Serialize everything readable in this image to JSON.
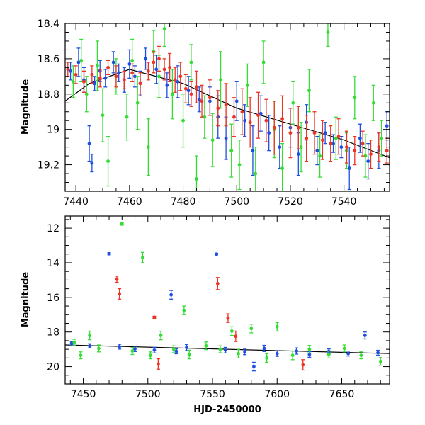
{
  "chart_data": [
    {
      "type": "scatter",
      "title": "",
      "xlabel": "",
      "ylabel": "Magnitude",
      "xlim": [
        7436,
        7557
      ],
      "ylim": [
        19.35,
        18.4
      ],
      "y_inverted": true,
      "x_ticks": [
        "7440",
        "7460",
        "7480",
        "7500",
        "7520",
        "7540"
      ],
      "y_ticks": [
        "18.4",
        "18.6",
        "18.8",
        "19",
        "19.2"
      ],
      "colors": {
        "blue": "#1f4fe0",
        "green": "#33dd33",
        "red": "#ee3322",
        "trend": "#000000"
      },
      "trend_line": {
        "x": [
          7436,
          7445,
          7460,
          7480,
          7500,
          7520,
          7540,
          7557
        ],
        "y": [
          18.84,
          18.74,
          18.66,
          18.74,
          18.88,
          18.97,
          19.06,
          19.16
        ]
      },
      "series": [
        {
          "color_key": "blue",
          "points": [
            [
              7438,
              18.67,
              0.05
            ],
            [
              7441,
              18.62,
              0.08
            ],
            [
              7443,
              18.72,
              0.07
            ],
            [
              7445,
              19.08,
              0.1
            ],
            [
              7446,
              19.19,
              0.05
            ],
            [
              7447,
              18.74,
              0.04
            ],
            [
              7449,
              18.67,
              0.06
            ],
            [
              7451,
              18.71,
              0.05
            ],
            [
              7454,
              18.62,
              0.06
            ],
            [
              7456,
              18.68,
              0.05
            ],
            [
              7458,
              18.72,
              0.07
            ],
            [
              7460,
              18.63,
              0.08
            ],
            [
              7462,
              18.7,
              0.06
            ],
            [
              7464,
              18.74,
              0.07
            ],
            [
              7466,
              18.6,
              0.06
            ],
            [
              7470,
              18.66,
              0.08
            ],
            [
              7474,
              18.75,
              0.07
            ],
            [
              7478,
              18.73,
              0.09
            ],
            [
              7482,
              18.78,
              0.08
            ],
            [
              7486,
              18.83,
              0.07
            ],
            [
              7490,
              18.84,
              0.08
            ],
            [
              7493,
              18.93,
              0.12
            ],
            [
              7496,
              19.05,
              0.12
            ],
            [
              7500,
              18.84,
              0.11
            ],
            [
              7503,
              18.95,
              0.09
            ],
            [
              7506,
              19.12,
              0.14
            ],
            [
              7509,
              18.91,
              0.1
            ],
            [
              7512,
              19.02,
              0.1
            ],
            [
              7516,
              19.1,
              0.12
            ],
            [
              7520,
              18.99,
              0.11
            ],
            [
              7523,
              19.14,
              0.12
            ],
            [
              7526,
              18.96,
              0.1
            ],
            [
              7530,
              19.12,
              0.08
            ],
            [
              7533,
              19.02,
              0.06
            ],
            [
              7536,
              19.08,
              0.05
            ],
            [
              7539,
              19.1,
              0.06
            ],
            [
              7542,
              19.22,
              0.12
            ],
            [
              7546,
              19.05,
              0.08
            ],
            [
              7549,
              19.18,
              0.1
            ],
            [
              7553,
              19.12,
              0.1
            ],
            [
              7556,
              18.98,
              0.08
            ]
          ]
        },
        {
          "color_key": "green",
          "points": [
            [
              7439,
              18.73,
              0.09
            ],
            [
              7442,
              18.61,
              0.12
            ],
            [
              7444,
              18.8,
              0.1
            ],
            [
              7448,
              18.64,
              0.14
            ],
            [
              7450,
              18.92,
              0.15
            ],
            [
              7452,
              19.18,
              0.14
            ],
            [
              7455,
              18.7,
              0.1
            ],
            [
              7459,
              18.93,
              0.13
            ],
            [
              7461,
              18.61,
              0.12
            ],
            [
              7463,
              18.85,
              0.15
            ],
            [
              7467,
              19.1,
              0.16
            ],
            [
              7469,
              18.56,
              0.12
            ],
            [
              7471,
              18.7,
              0.12
            ],
            [
              7473,
              18.43,
              0.1
            ],
            [
              7476,
              18.8,
              0.14
            ],
            [
              7480,
              18.95,
              0.15
            ],
            [
              7483,
              18.62,
              0.1
            ],
            [
              7485,
              19.28,
              0.13
            ],
            [
              7488,
              18.93,
              0.12
            ],
            [
              7491,
              19.06,
              0.15
            ],
            [
              7494,
              18.72,
              0.16
            ],
            [
              7498,
              19.12,
              0.15
            ],
            [
              7501,
              19.2,
              0.14
            ],
            [
              7504,
              18.75,
              0.12
            ],
            [
              7507,
              19.25,
              0.15
            ],
            [
              7510,
              18.62,
              0.12
            ],
            [
              7514,
              19.0,
              0.16
            ],
            [
              7517,
              19.22,
              0.14
            ],
            [
              7521,
              18.85,
              0.12
            ],
            [
              7524,
              19.1,
              0.14
            ],
            [
              7527,
              18.78,
              0.12
            ],
            [
              7531,
              19.15,
              0.12
            ],
            [
              7534,
              18.45,
              0.08
            ],
            [
              7537,
              19.05,
              0.12
            ],
            [
              7541,
              19.12,
              0.1
            ],
            [
              7544,
              18.82,
              0.12
            ],
            [
              7548,
              19.15,
              0.12
            ],
            [
              7551,
              18.85,
              0.1
            ],
            [
              7554,
              19.05,
              0.1
            ]
          ]
        },
        {
          "color_key": "red",
          "points": [
            [
              7437,
              18.66,
              0.04
            ],
            [
              7440,
              18.69,
              0.05
            ],
            [
              7443,
              18.73,
              0.06
            ],
            [
              7446,
              18.69,
              0.05
            ],
            [
              7449,
              18.71,
              0.05
            ],
            [
              7452,
              18.65,
              0.04
            ],
            [
              7455,
              18.7,
              0.06
            ],
            [
              7458,
              18.72,
              0.05
            ],
            [
              7461,
              18.68,
              0.05
            ],
            [
              7464,
              18.74,
              0.06
            ],
            [
              7467,
              18.67,
              0.05
            ],
            [
              7469,
              18.62,
              0.06
            ],
            [
              7471,
              18.6,
              0.07
            ],
            [
              7473,
              18.66,
              0.06
            ],
            [
              7475,
              18.65,
              0.08
            ],
            [
              7477,
              18.72,
              0.07
            ],
            [
              7479,
              18.7,
              0.08
            ],
            [
              7481,
              18.77,
              0.08
            ],
            [
              7483,
              18.8,
              0.07
            ],
            [
              7485,
              18.76,
              0.09
            ],
            [
              7487,
              18.84,
              0.09
            ],
            [
              7490,
              18.82,
              0.1
            ],
            [
              7493,
              18.88,
              0.1
            ],
            [
              7496,
              18.86,
              0.12
            ],
            [
              7499,
              18.93,
              0.11
            ],
            [
              7502,
              18.9,
              0.13
            ],
            [
              7505,
              18.96,
              0.14
            ],
            [
              7508,
              18.92,
              0.13
            ],
            [
              7511,
              18.95,
              0.12
            ],
            [
              7514,
              18.99,
              0.15
            ],
            [
              7517,
              18.94,
              0.13
            ],
            [
              7520,
              19.02,
              0.14
            ],
            [
              7523,
              18.99,
              0.12
            ],
            [
              7526,
              19.05,
              0.13
            ],
            [
              7529,
              19.02,
              0.12
            ],
            [
              7532,
              19.06,
              0.11
            ],
            [
              7535,
              19.08,
              0.1
            ],
            [
              7538,
              19.04,
              0.1
            ],
            [
              7541,
              19.1,
              0.09
            ],
            [
              7544,
              19.12,
              0.08
            ],
            [
              7547,
              19.08,
              0.07
            ],
            [
              7550,
              19.14,
              0.08
            ],
            [
              7553,
              19.1,
              0.08
            ],
            [
              7556,
              19.12,
              0.07
            ]
          ]
        }
      ]
    },
    {
      "type": "scatter",
      "title": "",
      "xlabel": "HJD-2450000",
      "ylabel": "Magnitude",
      "xlim": [
        7436,
        7687
      ],
      "ylim": [
        21,
        11.3
      ],
      "y_inverted": true,
      "x_ticks": [
        "7450",
        "7500",
        "7550",
        "7600",
        "7650"
      ],
      "y_ticks": [
        "12",
        "14",
        "16",
        "18",
        "20"
      ],
      "colors": {
        "blue": "#1f4fe0",
        "green": "#33dd33",
        "red": "#ee3322",
        "trend": "#000000"
      },
      "trend_line": {
        "x": [
          7436,
          7687
        ],
        "y": [
          18.75,
          19.25
        ]
      },
      "series": [
        {
          "color_key": "blue",
          "points": [
            [
              7441,
              18.65,
              0.1
            ],
            [
              7455,
              18.8,
              0.12
            ],
            [
              7470,
              13.48,
              0.06
            ],
            [
              7478,
              18.85,
              0.14
            ],
            [
              7490,
              18.98,
              0.15
            ],
            [
              7505,
              19.05,
              0.16
            ],
            [
              7518,
              15.85,
              0.25
            ],
            [
              7522,
              19.12,
              0.14
            ],
            [
              7530,
              18.9,
              0.18
            ],
            [
              7553,
              13.5,
              0.05
            ],
            [
              7560,
              19.05,
              0.16
            ],
            [
              7575,
              19.15,
              0.16
            ],
            [
              7582,
              20.0,
              0.25
            ],
            [
              7590,
              18.95,
              0.18
            ],
            [
              7600,
              19.25,
              0.16
            ],
            [
              7615,
              19.1,
              0.18
            ],
            [
              7625,
              19.3,
              0.16
            ],
            [
              7640,
              19.12,
              0.14
            ],
            [
              7655,
              19.25,
              0.14
            ],
            [
              7668,
              18.2,
              0.2
            ],
            [
              7678,
              19.2,
              0.14
            ]
          ]
        },
        {
          "color_key": "green",
          "points": [
            [
              7443,
              18.6,
              0.18
            ],
            [
              7448,
              19.35,
              0.2
            ],
            [
              7455,
              18.2,
              0.25
            ],
            [
              7462,
              18.95,
              0.2
            ],
            [
              7480,
              11.75,
              0.08
            ],
            [
              7488,
              19.1,
              0.2
            ],
            [
              7496,
              13.7,
              0.3
            ],
            [
              7502,
              19.35,
              0.2
            ],
            [
              7510,
              18.2,
              0.25
            ],
            [
              7520,
              19.0,
              0.2
            ],
            [
              7528,
              16.75,
              0.25
            ],
            [
              7532,
              19.3,
              0.25
            ],
            [
              7545,
              18.8,
              0.22
            ],
            [
              7556,
              19.0,
              0.2
            ],
            [
              7565,
              17.95,
              0.25
            ],
            [
              7570,
              19.25,
              0.25
            ],
            [
              7580,
              17.8,
              0.25
            ],
            [
              7592,
              19.5,
              0.25
            ],
            [
              7600,
              17.7,
              0.25
            ],
            [
              7612,
              19.35,
              0.25
            ],
            [
              7625,
              19.0,
              0.22
            ],
            [
              7640,
              19.3,
              0.2
            ],
            [
              7652,
              18.95,
              0.2
            ],
            [
              7665,
              19.35,
              0.2
            ],
            [
              7680,
              19.7,
              0.22
            ]
          ]
        },
        {
          "color_key": "red",
          "points": [
            [
              7476,
              14.95,
              0.18
            ],
            [
              7478,
              15.8,
              0.3
            ],
            [
              7505,
              17.15,
              0.06
            ],
            [
              7554,
              15.2,
              0.35
            ],
            [
              7562,
              17.2,
              0.25
            ],
            [
              7568,
              18.25,
              0.3
            ],
            [
              7508,
              19.85,
              0.3
            ],
            [
              7620,
              19.9,
              0.3
            ]
          ]
        }
      ]
    }
  ]
}
